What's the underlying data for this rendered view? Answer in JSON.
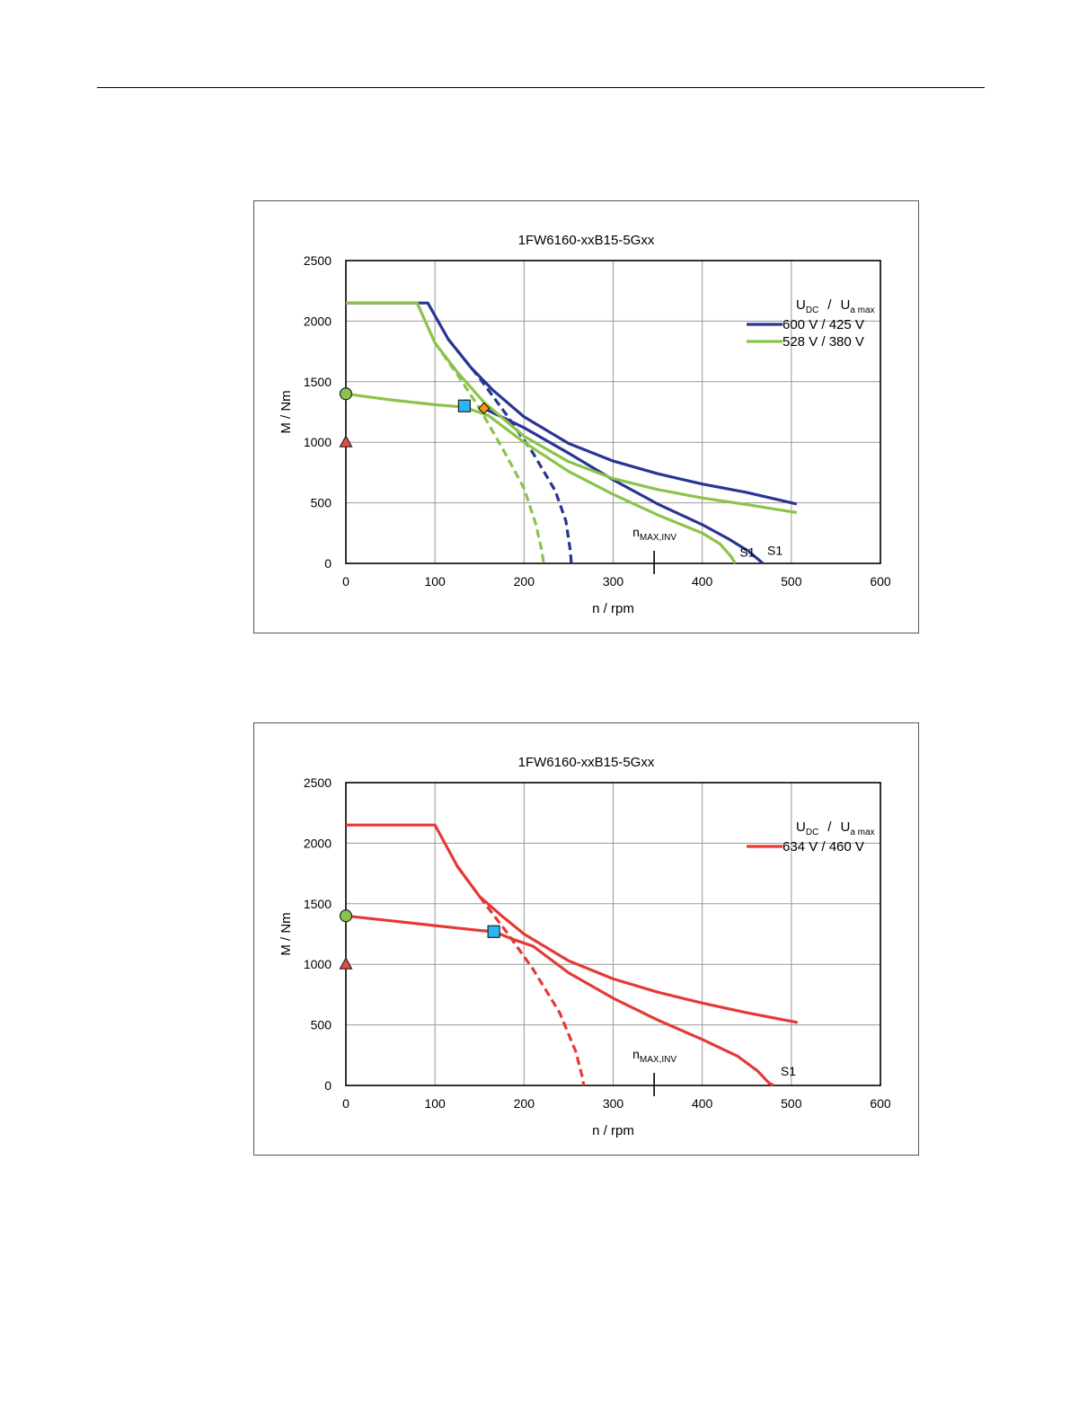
{
  "chart_data": [
    {
      "type": "line",
      "title": "1FW6160-xxB15-5Gxx",
      "xlabel": "n / rpm",
      "ylabel": "M / Nm",
      "xlim": [
        0,
        600
      ],
      "ylim": [
        0,
        2500
      ],
      "xticks": [
        "0",
        "100",
        "200",
        "300",
        "400",
        "500",
        "600"
      ],
      "yticks": [
        "0",
        "500",
        "1000",
        "1500",
        "2000",
        "2500"
      ],
      "grid": true,
      "legend_title": {
        "U": "U",
        "U_sub": "DC",
        "slash": "/",
        "Ua": "U",
        "Ua_sub": "a max"
      },
      "legend_position": "top-right",
      "annotation_nmax": {
        "n": "n",
        "sub": "MAX,INV",
        "x": 346
      },
      "series": [
        {
          "name": "600 V / 425 V",
          "color": "#283593",
          "curves": [
            {
              "style": "solid",
              "points": [
                [
                  0,
                  2150
                ],
                [
                  92,
                  2150
                ],
                [
                  115,
                  1850
                ],
                [
                  140,
                  1620
                ],
                [
                  165,
                  1430
                ],
                [
                  200,
                  1210
                ],
                [
                  250,
                  990
                ],
                [
                  300,
                  845
                ],
                [
                  350,
                  740
                ],
                [
                  400,
                  655
                ],
                [
                  450,
                  585
                ],
                [
                  506,
                  490
                ]
              ]
            },
            {
              "style": "solid",
              "points": [
                [
                  155,
                  1280
                ],
                [
                  200,
                  1120
                ],
                [
                  250,
                  910
                ],
                [
                  300,
                  690
                ],
                [
                  350,
                  490
                ],
                [
                  400,
                  320
                ],
                [
                  430,
                  200
                ],
                [
                  452,
                  100
                ],
                [
                  465,
                  20
                ],
                [
                  468,
                  0
                ]
              ]
            },
            {
              "style": "dashed",
              "points": [
                [
                  115,
                  1850
                ],
                [
                  150,
                  1530
                ],
                [
                  180,
                  1230
                ],
                [
                  210,
                  910
                ],
                [
                  235,
                  600
                ],
                [
                  247,
                  350
                ],
                [
                  252,
                  100
                ],
                [
                  253,
                  0
                ]
              ]
            }
          ],
          "label": {
            "text": "S1",
            "x": 473,
            "y": 70
          }
        },
        {
          "name": "528 V / 380 V",
          "color": "#8bc34a",
          "curves": [
            {
              "style": "solid",
              "points": [
                [
                  0,
                  2150
                ],
                [
                  80,
                  2150
                ],
                [
                  100,
                  1820
                ],
                [
                  125,
                  1580
                ],
                [
                  155,
                  1330
                ],
                [
                  200,
                  1050
                ],
                [
                  250,
                  840
                ],
                [
                  300,
                  700
                ],
                [
                  350,
                  610
                ],
                [
                  400,
                  540
                ],
                [
                  450,
                  485
                ],
                [
                  506,
                  420
                ]
              ]
            },
            {
              "style": "solid",
              "points": [
                [
                  0,
                  1400
                ],
                [
                  50,
                  1350
                ],
                [
                  100,
                  1310
                ],
                [
                  133,
                  1290
                ],
                [
                  160,
                  1220
                ],
                [
                  200,
                  1000
                ],
                [
                  250,
                  760
                ],
                [
                  300,
                  570
                ],
                [
                  350,
                  400
                ],
                [
                  400,
                  250
                ],
                [
                  420,
                  160
                ],
                [
                  432,
                  60
                ],
                [
                  437,
                  0
                ]
              ]
            },
            {
              "style": "dashed",
              "points": [
                [
                  100,
                  1820
                ],
                [
                  125,
                  1560
                ],
                [
                  150,
                  1280
                ],
                [
                  175,
                  960
                ],
                [
                  200,
                  620
                ],
                [
                  213,
                  330
                ],
                [
                  220,
                  100
                ],
                [
                  222,
                  0
                ]
              ]
            }
          ],
          "label": {
            "text": "S1",
            "x": 442,
            "y": 55
          }
        }
      ],
      "markers": [
        {
          "shape": "circle",
          "x": 0,
          "y": 1400,
          "color": "#8bc34a"
        },
        {
          "shape": "triangle",
          "x": 0,
          "y": 1000,
          "color": "#e74c3c"
        },
        {
          "shape": "square",
          "x": 133,
          "y": 1300,
          "color": "#29b6f6"
        },
        {
          "shape": "diamond",
          "x": 155,
          "y": 1280,
          "color": "#ff9800"
        }
      ]
    },
    {
      "type": "line",
      "title": "1FW6160-xxB15-5Gxx",
      "xlabel": "n / rpm",
      "ylabel": "M / Nm",
      "xlim": [
        0,
        600
      ],
      "ylim": [
        0,
        2500
      ],
      "xticks": [
        "0",
        "100",
        "200",
        "300",
        "400",
        "500",
        "600"
      ],
      "yticks": [
        "0",
        "500",
        "1000",
        "1500",
        "2000",
        "2500"
      ],
      "grid": true,
      "legend_title": {
        "U": "U",
        "U_sub": "DC",
        "slash": "/",
        "Ua": "U",
        "Ua_sub": "a max"
      },
      "legend_position": "top-right",
      "annotation_nmax": {
        "n": "n",
        "sub": "MAX,INV",
        "x": 346
      },
      "series": [
        {
          "name": "634 V / 460 V",
          "color": "#e53935",
          "curves": [
            {
              "style": "solid",
              "points": [
                [
                  0,
                  2150
                ],
                [
                  100,
                  2150
                ],
                [
                  125,
                  1810
                ],
                [
                  150,
                  1560
                ],
                [
                  175,
                  1400
                ],
                [
                  200,
                  1250
                ],
                [
                  250,
                  1030
                ],
                [
                  300,
                  880
                ],
                [
                  350,
                  770
                ],
                [
                  400,
                  680
                ],
                [
                  450,
                  600
                ],
                [
                  507,
                  520
                ]
              ]
            },
            {
              "style": "solid",
              "points": [
                [
                  0,
                  1400
                ],
                [
                  50,
                  1360
                ],
                [
                  100,
                  1320
                ],
                [
                  150,
                  1280
                ],
                [
                  166,
                  1270
                ],
                [
                  190,
                  1200
                ],
                [
                  210,
                  1150
                ],
                [
                  250,
                  930
                ],
                [
                  300,
                  720
                ],
                [
                  350,
                  540
                ],
                [
                  400,
                  380
                ],
                [
                  440,
                  240
                ],
                [
                  462,
                  120
                ],
                [
                  475,
                  20
                ],
                [
                  480,
                  0
                ]
              ]
            },
            {
              "style": "dashed",
              "points": [
                [
                  125,
                  1810
                ],
                [
                  150,
                  1560
                ],
                [
                  180,
                  1270
                ],
                [
                  210,
                  960
                ],
                [
                  240,
                  600
                ],
                [
                  258,
                  280
                ],
                [
                  265,
                  80
                ],
                [
                  267,
                  0
                ]
              ]
            }
          ],
          "label": {
            "text": "S1",
            "x": 488,
            "y": 80
          }
        }
      ],
      "markers": [
        {
          "shape": "circle",
          "x": 0,
          "y": 1400,
          "color": "#8bc34a"
        },
        {
          "shape": "triangle",
          "x": 0,
          "y": 1000,
          "color": "#e74c3c"
        },
        {
          "shape": "square",
          "x": 166,
          "y": 1270,
          "color": "#29b6f6"
        }
      ]
    }
  ]
}
